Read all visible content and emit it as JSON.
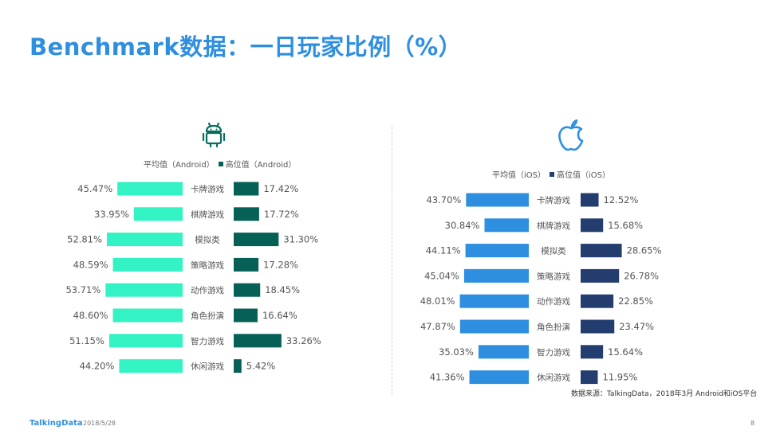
{
  "title": "Benchmark数据：一日玩家比例（%）",
  "colors": {
    "title": "#2E8FE0",
    "android_avg": "#33F2C3",
    "android_high": "#066055",
    "ios_avg": "#2E8FE0",
    "ios_high": "#233D6E",
    "android_icon": "#0A6E5F",
    "ios_icon": "#2E8FE0"
  },
  "android": {
    "icon": "android-icon",
    "legend_avg": "平均值（Android）",
    "legend_high": "高位值（Android）"
  },
  "ios": {
    "icon": "apple-icon",
    "legend_avg": "平均值（iOS）",
    "legend_high": "高位值（iOS）"
  },
  "chart_data": [
    {
      "type": "bar",
      "platform": "Android",
      "categories": [
        "卡牌游戏",
        "棋牌游戏",
        "模拟类",
        "策略游戏",
        "动作游戏",
        "角色扮演",
        "智力游戏",
        "休闲游戏"
      ],
      "series": [
        {
          "name": "平均值（Android）",
          "values": [
            45.47,
            33.95,
            52.81,
            48.59,
            53.71,
            48.6,
            51.15,
            44.2
          ],
          "labels": [
            "45.47%",
            "33.95%",
            "52.81%",
            "48.59%",
            "53.71%",
            "48.60%",
            "51.15%",
            "44.20%"
          ]
        },
        {
          "name": "高位值（Android）",
          "values": [
            17.42,
            17.72,
            31.3,
            17.28,
            18.45,
            16.64,
            33.26,
            5.42
          ],
          "labels": [
            "17.42%",
            "17.72%",
            "31.30%",
            "17.28%",
            "18.45%",
            "16.64%",
            "33.26%",
            "5.42%"
          ]
        }
      ]
    },
    {
      "type": "bar",
      "platform": "iOS",
      "categories": [
        "卡牌游戏",
        "棋牌游戏",
        "模拟类",
        "策略游戏",
        "动作游戏",
        "角色扮演",
        "智力游戏",
        "休闲游戏"
      ],
      "series": [
        {
          "name": "平均值（iOS）",
          "values": [
            43.7,
            30.84,
            44.11,
            45.04,
            48.01,
            47.87,
            35.03,
            41.36
          ],
          "labels": [
            "43.70%",
            "30.84%",
            "44.11%",
            "45.04%",
            "48.01%",
            "47.87%",
            "35.03%",
            "41.36%"
          ]
        },
        {
          "name": "高位值（iOS）",
          "values": [
            12.52,
            15.68,
            28.65,
            26.78,
            22.85,
            23.47,
            15.64,
            11.95
          ],
          "labels": [
            "12.52%",
            "15.68%",
            "28.65%",
            "26.78%",
            "22.85%",
            "23.47%",
            "15.64%",
            "11.95%"
          ]
        }
      ]
    }
  ],
  "source": "数据来源：TalkingData，2018年3月 Android和iOS平台",
  "footer": {
    "brand": "TalkingData",
    "date": "2018/5/28",
    "page": "8"
  }
}
